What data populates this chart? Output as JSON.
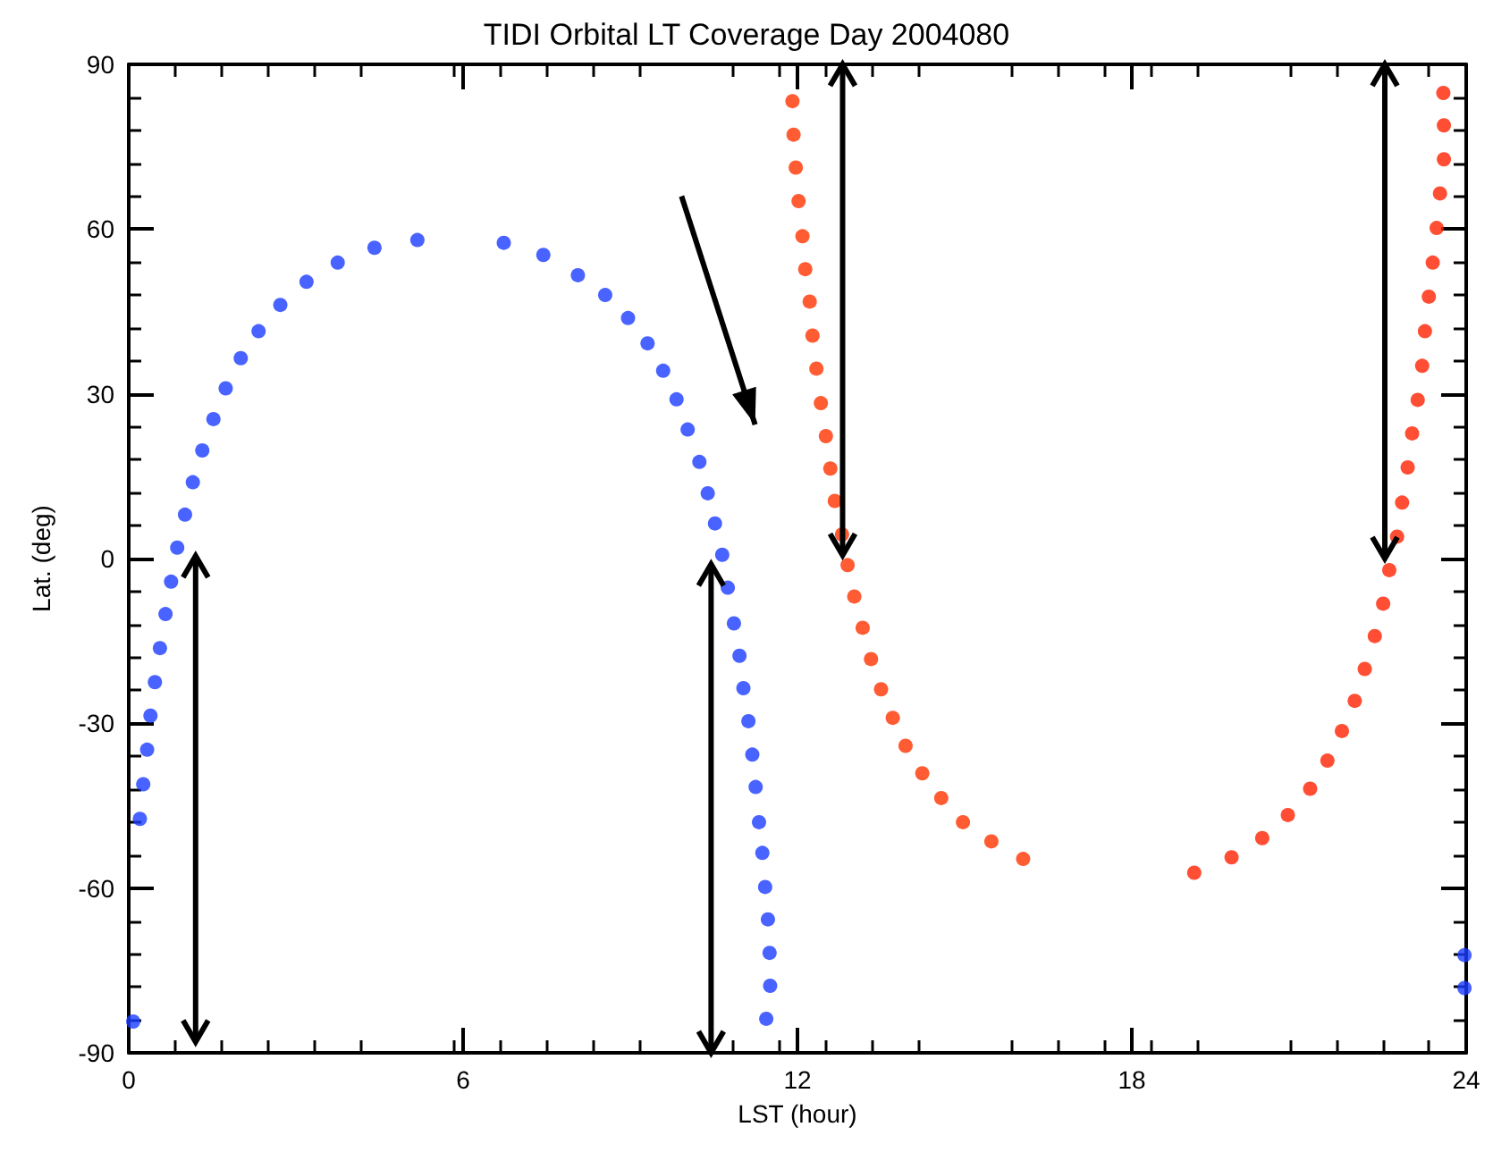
{
  "chart_data": {
    "type": "scatter",
    "title": "TIDI Orbital LT Coverage Day 2004080",
    "xlabel": "LST (hour)",
    "ylabel": "Lat. (deg)",
    "xlim": [
      0,
      24
    ],
    "xticks": [
      0,
      6,
      12,
      18,
      24
    ],
    "ylim": [
      -90,
      90
    ],
    "yticks": [
      -90,
      -60,
      -30,
      0,
      30,
      60,
      90
    ],
    "grid": false,
    "marker": "circle",
    "series": [
      {
        "color": "#1a3cff",
        "x": [
          0.08,
          0.2,
          0.26,
          0.33,
          0.39,
          0.47,
          0.56,
          0.66,
          0.76,
          0.87,
          1.01,
          1.15,
          1.32,
          1.52,
          1.74,
          2.01,
          2.33,
          2.72,
          3.19,
          3.75,
          4.41,
          5.18,
          23.97,
          23.97
        ],
        "values": [
          -84.3,
          -47.4,
          -41.1,
          -34.8,
          -28.6,
          -22.5,
          -16.3,
          -10.1,
          -4.2,
          2.0,
          8.0,
          13.9,
          19.7,
          25.4,
          31.0,
          36.5,
          41.4,
          46.2,
          50.4,
          53.9,
          56.6,
          58.0,
          -72.2,
          -78.2
        ]
      },
      {
        "color": "#1a3cff",
        "x": [
          6.73,
          7.44,
          8.06,
          8.55,
          8.96,
          9.31,
          9.59,
          9.83,
          10.03,
          10.24,
          10.39,
          10.52,
          10.65,
          10.75,
          10.86,
          10.96,
          11.03,
          11.12,
          11.19,
          11.25,
          11.31,
          11.37,
          11.42,
          11.47,
          11.5,
          11.51,
          11.44
        ],
        "values": [
          57.5,
          55.3,
          51.6,
          48.0,
          43.8,
          39.2,
          34.2,
          29.0,
          23.5,
          17.6,
          11.9,
          6.4,
          0.7,
          -5.3,
          -11.8,
          -17.7,
          -23.6,
          -29.6,
          -35.7,
          -41.6,
          -48.0,
          -53.6,
          -59.8,
          -65.7,
          -71.8,
          -77.8,
          -83.8
        ]
      },
      {
        "color": "#ff3300",
        "x": [
          11.91,
          11.93,
          11.97,
          12.02,
          12.09,
          12.14,
          12.22,
          12.27,
          12.34,
          12.42,
          12.51,
          12.59,
          12.67,
          12.8,
          12.9,
          13.02,
          13.17,
          13.32,
          13.5,
          13.71,
          13.94,
          14.24,
          14.58,
          14.97,
          15.48,
          16.05
        ],
        "values": [
          83.3,
          77.2,
          71.2,
          65.1,
          58.7,
          52.7,
          46.8,
          40.6,
          34.6,
          28.3,
          22.3,
          16.4,
          10.5,
          4.4,
          -1.2,
          -6.9,
          -12.6,
          -18.3,
          -23.8,
          -29.0,
          -34.1,
          -39.1,
          -43.6,
          -48.0,
          -51.5,
          -54.7
        ]
      },
      {
        "color": "#ff2200",
        "x": [
          19.12,
          19.79,
          20.34,
          20.8,
          21.2,
          21.51,
          21.77,
          22.0,
          22.18,
          22.36,
          22.51,
          22.62,
          22.76,
          22.85,
          22.95,
          23.03,
          23.13,
          23.21,
          23.26,
          23.33,
          23.4,
          23.47,
          23.53,
          23.6,
          23.6,
          23.59
        ],
        "values": [
          -57.2,
          -54.4,
          -50.9,
          -46.7,
          -41.9,
          -36.8,
          -31.4,
          -25.9,
          -20.1,
          -14.1,
          -8.2,
          -2.1,
          4.0,
          10.2,
          16.6,
          22.8,
          28.9,
          35.1,
          41.4,
          47.7,
          53.9,
          60.2,
          66.5,
          72.7,
          78.9,
          84.8
        ]
      }
    ]
  }
}
